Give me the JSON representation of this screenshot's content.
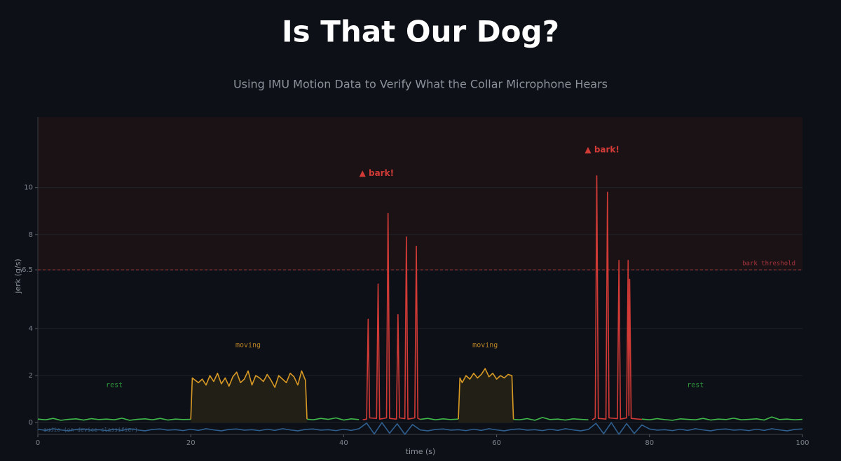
{
  "chart_data": {
    "type": "line",
    "title": "Is That Our Dog?",
    "subtitle": "Using IMU Motion Data to Verify What the Collar Microphone Hears",
    "x_label": "time (s)",
    "y_label": "jerk (g/s)",
    "xlim": [
      0,
      100
    ],
    "xticks": [
      0,
      20,
      40,
      60,
      80,
      100
    ],
    "ylim": [
      -0.5,
      13
    ],
    "yticks": [
      0,
      2,
      4,
      6.5,
      8,
      10
    ],
    "grid": true,
    "threshold": {
      "value": 6.5,
      "label": "bark threshold",
      "color": "#a8343a"
    },
    "x": [
      0,
      1,
      2,
      3,
      4,
      5,
      6,
      7,
      8,
      9,
      10,
      11,
      12,
      13,
      14,
      15,
      16,
      17,
      18,
      19,
      20,
      21,
      22,
      23,
      24,
      25,
      26,
      27,
      28,
      29,
      30,
      31,
      32,
      33,
      34,
      35,
      36,
      37,
      38,
      39,
      40,
      41,
      42,
      43,
      44,
      45,
      46,
      47,
      48,
      49,
      50,
      51,
      52,
      53,
      54,
      55,
      56,
      57,
      58,
      59,
      60,
      61,
      62,
      63,
      64,
      65,
      66,
      67,
      68,
      69,
      70,
      71,
      72,
      73,
      74,
      75,
      76,
      77,
      78,
      79,
      80,
      81,
      82,
      83,
      84,
      85,
      86,
      87,
      88,
      89,
      90,
      91,
      92,
      93,
      94,
      95,
      96,
      97,
      98,
      99,
      100
    ],
    "series": [
      {
        "color": "#3fb94a",
        "fill": null,
        "values": [
          0.15,
          0.12,
          0.18,
          0.1,
          0.14,
          0.16,
          0.11,
          0.17,
          0.13,
          0.15,
          0.12,
          0.19,
          0.1,
          0.14,
          0.16,
          0.12,
          0.18,
          0.11,
          0.15,
          0.13,
          0.14,
          null,
          null,
          null,
          null,
          null,
          null,
          null,
          null,
          null,
          null,
          null,
          null,
          null,
          null,
          0.15,
          0.12,
          0.18,
          0.14,
          0.2,
          0.11,
          0.16,
          0.13,
          null,
          null,
          null,
          null,
          null,
          null,
          null,
          0.14,
          0.18,
          0.12,
          0.16,
          0.13,
          0.15,
          null,
          null,
          null,
          null,
          null,
          null,
          0.14,
          0.12,
          0.17,
          0.1,
          0.22,
          0.13,
          0.15,
          0.11,
          0.16,
          0.14,
          0.12,
          null,
          null,
          null,
          null,
          null,
          null,
          0.15,
          0.12,
          0.17,
          0.13,
          0.1,
          0.16,
          0.14,
          0.12,
          0.18,
          0.11,
          0.15,
          0.13,
          0.19,
          0.12,
          0.14,
          0.16,
          0.11,
          0.24,
          0.13,
          0.15,
          0.12,
          0.14
        ]
      },
      {
        "color": "#d99a25",
        "fill": "#221f17",
        "x": [
          20,
          20.2,
          21,
          21.5,
          22,
          22.5,
          23,
          23.5,
          24,
          24.5,
          25,
          25.5,
          26,
          26.5,
          27,
          27.5,
          28,
          28.5,
          29,
          29.5,
          30,
          30.5,
          31,
          31.5,
          32,
          32.5,
          33,
          33.5,
          34,
          34.5,
          35,
          35.2,
          45,
          55,
          55.2,
          55.5,
          56,
          56.5,
          57,
          57.5,
          58,
          58.5,
          59,
          59.5,
          60,
          60.5,
          61,
          61.5,
          62,
          62.2
        ],
        "values": [
          0.14,
          1.9,
          1.7,
          1.85,
          1.6,
          2.0,
          1.75,
          2.1,
          1.65,
          1.9,
          1.55,
          1.95,
          2.15,
          1.7,
          1.85,
          2.2,
          1.6,
          2.0,
          1.9,
          1.75,
          2.05,
          1.8,
          1.5,
          2.0,
          1.85,
          1.7,
          2.1,
          1.95,
          1.6,
          2.2,
          1.8,
          0.15,
          null,
          0.15,
          1.9,
          1.7,
          2.0,
          1.85,
          2.1,
          1.9,
          2.05,
          2.3,
          1.95,
          2.1,
          1.85,
          2.0,
          1.9,
          2.05,
          2.0,
          0.14
        ]
      },
      {
        "color": "#d23a36",
        "fill": null,
        "x": [
          42.5,
          43,
          43.2,
          43.4,
          44.3,
          44.5,
          44.7,
          45.6,
          45.8,
          46,
          46.9,
          47.1,
          47.3,
          48,
          48.2,
          48.4,
          49.3,
          49.5,
          49.7,
          50,
          60,
          72.5,
          72.9,
          73.1,
          73.3,
          74.3,
          74.5,
          74.7,
          75.8,
          76,
          76.2,
          77,
          77.2,
          77.3,
          77.4,
          77.6,
          78.5,
          79
        ],
        "values": [
          0.12,
          0.15,
          4.4,
          0.2,
          0.18,
          5.9,
          0.15,
          0.2,
          8.9,
          0.18,
          0.15,
          4.6,
          0.2,
          0.17,
          7.9,
          0.15,
          0.2,
          7.5,
          0.18,
          0.14,
          null,
          0.12,
          0.2,
          10.5,
          0.18,
          0.15,
          9.8,
          0.2,
          0.17,
          6.9,
          0.15,
          0.2,
          6.9,
          0.3,
          6.1,
          0.18,
          0.15,
          0.14
        ]
      },
      {
        "name": "audio (on-device classifier)",
        "color": "#2f5f8f",
        "fill": null,
        "values": [
          -0.28,
          -0.33,
          -0.26,
          -0.31,
          -0.35,
          -0.29,
          -0.27,
          -0.32,
          -0.3,
          -0.34,
          -0.28,
          -0.33,
          -0.26,
          -0.31,
          -0.35,
          -0.29,
          -0.27,
          -0.32,
          -0.3,
          -0.34,
          -0.28,
          -0.33,
          -0.26,
          -0.31,
          -0.35,
          -0.29,
          -0.27,
          -0.32,
          -0.3,
          -0.34,
          -0.28,
          -0.33,
          -0.26,
          -0.31,
          -0.35,
          -0.29,
          -0.27,
          -0.32,
          -0.3,
          -0.34,
          -0.28,
          -0.33,
          -0.26,
          -0.02,
          -0.48,
          0.0,
          -0.45,
          -0.05,
          -0.5,
          -0.08,
          -0.31,
          -0.35,
          -0.29,
          -0.27,
          -0.32,
          -0.3,
          -0.34,
          -0.28,
          -0.33,
          -0.26,
          -0.31,
          -0.35,
          -0.29,
          -0.27,
          -0.32,
          -0.3,
          -0.34,
          -0.28,
          -0.33,
          -0.26,
          -0.31,
          -0.35,
          -0.29,
          -0.03,
          -0.47,
          0.0,
          -0.5,
          -0.04,
          -0.46,
          -0.1,
          -0.27,
          -0.32,
          -0.3,
          -0.34,
          -0.28,
          -0.33,
          -0.26,
          -0.31,
          -0.35,
          -0.29,
          -0.27,
          -0.32,
          -0.3,
          -0.34,
          -0.28,
          -0.33,
          -0.26,
          -0.31,
          -0.35,
          -0.29,
          -0.27
        ]
      }
    ],
    "annotations": [
      {
        "text": "rest",
        "x": 10,
        "y": 1.6,
        "color": "#2f9a3c",
        "bold": false
      },
      {
        "text": "moving",
        "x": 27.5,
        "y": 3.3,
        "color": "#b98325",
        "bold": false
      },
      {
        "text": "▲ bark!",
        "x": 44.3,
        "y": 10.6,
        "color": "#d23a36",
        "bold": true
      },
      {
        "text": "moving",
        "x": 58.5,
        "y": 3.3,
        "color": "#b98325",
        "bold": false
      },
      {
        "text": "▲ bark!",
        "x": 73.8,
        "y": 11.6,
        "color": "#d23a36",
        "bold": true
      },
      {
        "text": "rest",
        "x": 86,
        "y": 1.6,
        "color": "#2f9a3c",
        "bold": false
      }
    ]
  }
}
